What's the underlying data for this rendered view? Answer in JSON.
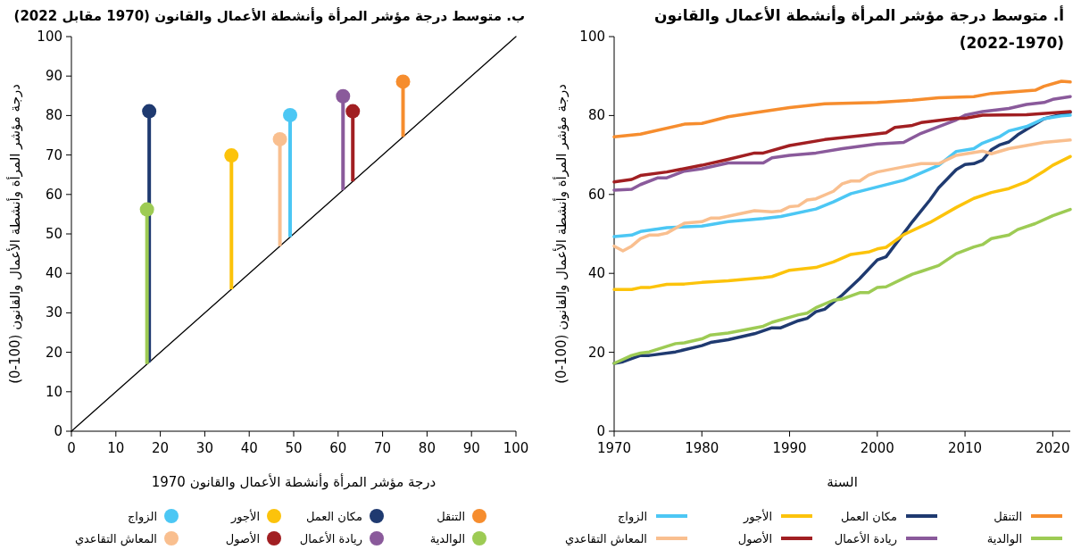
{
  "chart_data": [
    {
      "type": "line",
      "title": "أ. متوسط درجة مؤشر المرأة وأنشطة الأعمال والقانون (2022-1970)",
      "xlabel": "السنة",
      "ylabel": "درجة مؤشر المرأة وأنشطة الأعمال والقانون (100-0)",
      "xlim": [
        1970,
        2022
      ],
      "xticks": [
        1970,
        1980,
        1990,
        2000,
        2010,
        2020
      ],
      "ylim": [
        0,
        100
      ],
      "yticks": [
        0,
        20,
        40,
        60,
        80,
        100
      ],
      "legend": "bottom",
      "series": [
        {
          "name": "التنقل",
          "color": "#f68d2e",
          "x": [
            1970,
            1973,
            1978,
            1980,
            1983,
            1986,
            1990,
            1994,
            2000,
            2004,
            2007,
            2011,
            2013,
            2018,
            2019,
            2021,
            2022
          ],
          "values": [
            74.6,
            75.3,
            77.8,
            78,
            79.7,
            80.7,
            82,
            83,
            83.3,
            83.9,
            84.5,
            84.8,
            85.6,
            86.4,
            87.4,
            88.7,
            88.5
          ]
        },
        {
          "name": "مكان العمل",
          "color": "#1f3a70",
          "x": [
            1970,
            1971,
            1973,
            1974,
            1977,
            1980,
            1981,
            1983,
            1986,
            1988,
            1989,
            1991,
            1992,
            1993,
            1994,
            1996,
            1998,
            2000,
            2001,
            2004,
            2006,
            2007,
            2009,
            2010,
            2011,
            2012,
            2013,
            2014,
            2015,
            2016,
            2018,
            2019,
            2022
          ],
          "values": [
            17.2,
            17.6,
            19.2,
            19.2,
            20.1,
            21.7,
            22.5,
            23.2,
            24.7,
            26.2,
            26.2,
            28,
            28.6,
            30.3,
            30.9,
            34.5,
            38.7,
            43.4,
            44.2,
            53.1,
            58.6,
            61.7,
            66.3,
            67.6,
            67.8,
            68.7,
            71.3,
            72.6,
            73.3,
            75.1,
            77.8,
            79.2,
            80.8
          ]
        },
        {
          "name": "الأجور",
          "color": "#fcc30b",
          "x": [
            1970,
            1972,
            1973,
            1974,
            1976,
            1978,
            1980,
            1983,
            1987,
            1988,
            1990,
            1993,
            1995,
            1997,
            1999,
            2000,
            2001,
            2003,
            2005,
            2006,
            2009,
            2011,
            2013,
            2015,
            2017,
            2019,
            2020,
            2022
          ],
          "values": [
            35.9,
            35.9,
            36.4,
            36.4,
            37.2,
            37.3,
            37.7,
            38.1,
            38.9,
            39.2,
            40.8,
            41.5,
            42.9,
            44.8,
            45.4,
            46.2,
            46.6,
            49.8,
            51.9,
            52.9,
            56.7,
            59,
            60.5,
            61.5,
            63.2,
            65.9,
            67.4,
            69.6
          ]
        },
        {
          "name": "الزواج",
          "color": "#4cc7f4",
          "x": [
            1970,
            1972,
            1973,
            1976,
            1980,
            1983,
            1987,
            1989,
            1993,
            1995,
            1997,
            2003,
            2004,
            2007,
            2009,
            2011,
            2012,
            2014,
            2015,
            2017,
            2019,
            2021,
            2022
          ],
          "values": [
            49.3,
            49.7,
            50.6,
            51.6,
            52,
            53.1,
            53.9,
            54.4,
            56.3,
            58.1,
            60.2,
            63.6,
            64.5,
            67.4,
            70.9,
            71.6,
            73,
            74.7,
            76.1,
            77.2,
            79.2,
            79.9,
            80.1
          ]
        },
        {
          "name": "الوالدية",
          "color": "#9dcb54",
          "x": [
            1970,
            1972,
            1973,
            1974,
            1977,
            1978,
            1980,
            1981,
            1983,
            1987,
            1988,
            1991,
            1992,
            1993,
            1995,
            1996,
            1998,
            1999,
            2000,
            2001,
            2004,
            2005,
            2007,
            2009,
            2011,
            2012,
            2013,
            2015,
            2016,
            2018,
            2020,
            2022
          ],
          "values": [
            17.2,
            19.2,
            19.8,
            20.1,
            22.2,
            22.4,
            23.4,
            24.4,
            24.9,
            26.6,
            27.6,
            29.5,
            29.9,
            31.3,
            33.2,
            33.5,
            35.1,
            35.1,
            36.4,
            36.6,
            39.8,
            40.5,
            42,
            45,
            46.7,
            47.3,
            48.8,
            49.7,
            51.1,
            52.6,
            54.6,
            56.2
          ]
        },
        {
          "name": "ريادة الأعمال",
          "color": "#8a5a9b",
          "x": [
            1970,
            1972,
            1973,
            1975,
            1976,
            1978,
            1980,
            1983,
            1987,
            1988,
            1990,
            1993,
            1996,
            2000,
            2003,
            2005,
            2009,
            2010,
            2012,
            2015,
            2017,
            2019,
            2020,
            2022
          ],
          "values": [
            61.1,
            61.3,
            62.5,
            64.2,
            64.2,
            65.9,
            66.5,
            68,
            68,
            69.3,
            69.9,
            70.5,
            71.6,
            72.8,
            73.2,
            75.5,
            78.9,
            80.1,
            81,
            81.8,
            82.8,
            83.3,
            84.1,
            84.8
          ]
        },
        {
          "name": "الأصول",
          "color": "#a11f22",
          "x": [
            1970,
            1972,
            1973,
            1976,
            1980,
            1983,
            1986,
            1987,
            1990,
            1994,
            1999,
            2001,
            2002,
            2004,
            2005,
            2009,
            2010,
            2012,
            2017,
            2022
          ],
          "values": [
            63.2,
            63.8,
            64.8,
            65.7,
            67.4,
            68.9,
            70.5,
            70.5,
            72.4,
            73.9,
            75.1,
            75.6,
            77,
            77.5,
            78.2,
            79.3,
            79.3,
            80.1,
            80.2,
            81
          ]
        },
        {
          "name": "المعاش التقاعدي",
          "color": "#f9bf8f",
          "x": [
            1970,
            1971,
            1972,
            1973,
            1974,
            1975,
            1976,
            1978,
            1980,
            1981,
            1982,
            1986,
            1988,
            1989,
            1990,
            1991,
            1992,
            1993,
            1995,
            1996,
            1997,
            1998,
            1999,
            2000,
            2003,
            2005,
            2007,
            2009,
            2012,
            2013,
            2015,
            2017,
            2019,
            2022
          ],
          "values": [
            46.9,
            45.7,
            46.9,
            48.8,
            49.7,
            49.7,
            50.2,
            52.7,
            53.1,
            54,
            54,
            55.9,
            55.6,
            55.8,
            56.9,
            57.1,
            58.6,
            58.9,
            60.8,
            62.7,
            63.4,
            63.4,
            64.9,
            65.7,
            67,
            67.8,
            67.8,
            69.9,
            71,
            70.3,
            71.6,
            72.4,
            73.2,
            73.8
          ]
        }
      ]
    },
    {
      "type": "scatter",
      "title": "ب. متوسط درجة مؤشر المرأة وأنشطة الأعمال والقانون (1970 مقابل 2022)",
      "xlabel": "درجة مؤشر المرأة وأنشطة الأعمال والقانون 1970",
      "ylabel": "درجة مؤشر المرأة وأنشطة الأعمال والقانون (100-0)",
      "xlim": [
        0,
        100
      ],
      "xticks": [
        0,
        10,
        20,
        30,
        40,
        50,
        60,
        70,
        80,
        90,
        100
      ],
      "ylim": [
        0,
        100
      ],
      "yticks": [
        0,
        10,
        20,
        30,
        40,
        50,
        60,
        70,
        80,
        90,
        100
      ],
      "legend": "bottom",
      "marker": "circle",
      "series": [
        {
          "type": "line",
          "marker": "none",
          "color": "#000000",
          "x": [
            0,
            100
          ],
          "values": [
            0,
            100
          ]
        },
        {
          "name": "التنقل",
          "color": "#f68d2e",
          "x": [
            74.6
          ],
          "values": [
            88.6
          ],
          "errors": [
            [
              74.6,
              88.6
            ]
          ]
        },
        {
          "name": "مكان العمل",
          "color": "#1f3a70",
          "x": [
            17.5
          ],
          "values": [
            81.1
          ],
          "errors": [
            [
              17.5,
              81.1
            ]
          ]
        },
        {
          "name": "الأجور",
          "color": "#fcc30b",
          "x": [
            36
          ],
          "values": [
            69.9
          ],
          "errors": [
            [
              36,
              69.9
            ]
          ]
        },
        {
          "name": "الزواج",
          "color": "#4cc7f4",
          "x": [
            49.2
          ],
          "values": [
            80.1
          ],
          "errors": [
            [
              49.2,
              80.1
            ]
          ]
        },
        {
          "name": "الوالدية",
          "color": "#9dcb54",
          "x": [
            17
          ],
          "values": [
            56.2
          ],
          "errors": [
            [
              17,
              56.2
            ]
          ]
        },
        {
          "name": "ريادة الأعمال",
          "color": "#8a5a9b",
          "x": [
            61.1
          ],
          "values": [
            84.9
          ],
          "errors": [
            [
              61.1,
              84.9
            ]
          ]
        },
        {
          "name": "الأصول",
          "color": "#a11f22",
          "x": [
            63.3
          ],
          "values": [
            81.1
          ],
          "errors": [
            [
              63.3,
              81.1
            ]
          ]
        },
        {
          "name": "المعاش التقاعدي",
          "color": "#f9bf8f",
          "x": [
            46.9
          ],
          "values": [
            74
          ],
          "errors": [
            [
              46.9,
              74
            ]
          ]
        }
      ]
    }
  ]
}
